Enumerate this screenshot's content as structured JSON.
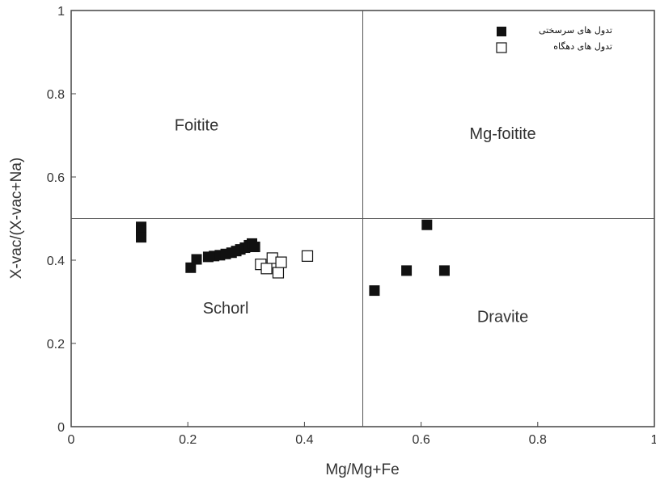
{
  "chart_data": {
    "type": "scatter",
    "title": "",
    "xlabel": "Mg/Mg+Fe",
    "ylabel": "X-vac/(X-vac+Na)",
    "xlim": [
      0,
      1
    ],
    "ylim": [
      0,
      1
    ],
    "xticks": [
      0,
      0.2,
      0.4,
      0.6,
      0.8,
      1
    ],
    "yticks": [
      0,
      0.2,
      0.4,
      0.6,
      0.8,
      1
    ],
    "xtick_labels": [
      "0",
      "0.2",
      "0.4",
      "0.6",
      "0.8",
      "1"
    ],
    "ytick_labels": [
      "0",
      "0.2",
      "0.4",
      "0.6",
      "0.8",
      "1"
    ],
    "grid": false,
    "divider_lines": {
      "x": 0.5,
      "y": 0.5
    },
    "legend_position": "top-right",
    "fields": [
      {
        "label": "Foitite",
        "x": 0.215,
        "y": 0.725
      },
      {
        "label": "Mg-foitite",
        "x": 0.74,
        "y": 0.705
      },
      {
        "label": "Schorl",
        "x": 0.265,
        "y": 0.285
      },
      {
        "label": "Dravite",
        "x": 0.74,
        "y": 0.265
      }
    ],
    "series": [
      {
        "name": "تدول های سرسختی",
        "marker": "filled-square",
        "color": "#111111",
        "points": [
          [
            0.12,
            0.48
          ],
          [
            0.12,
            0.47
          ],
          [
            0.12,
            0.455
          ],
          [
            0.205,
            0.382
          ],
          [
            0.215,
            0.402
          ],
          [
            0.235,
            0.408
          ],
          [
            0.245,
            0.41
          ],
          [
            0.255,
            0.412
          ],
          [
            0.265,
            0.415
          ],
          [
            0.275,
            0.418
          ],
          [
            0.283,
            0.422
          ],
          [
            0.29,
            0.426
          ],
          [
            0.298,
            0.43
          ],
          [
            0.305,
            0.436
          ],
          [
            0.31,
            0.44
          ],
          [
            0.315,
            0.432
          ],
          [
            0.52,
            0.327
          ],
          [
            0.575,
            0.375
          ],
          [
            0.61,
            0.485
          ],
          [
            0.64,
            0.375
          ]
        ]
      },
      {
        "name": "تدول های دهگاه",
        "marker": "open-square",
        "color": "#111111",
        "points": [
          [
            0.325,
            0.39
          ],
          [
            0.335,
            0.38
          ],
          [
            0.345,
            0.405
          ],
          [
            0.355,
            0.37
          ],
          [
            0.36,
            0.395
          ],
          [
            0.405,
            0.41
          ]
        ]
      }
    ]
  }
}
